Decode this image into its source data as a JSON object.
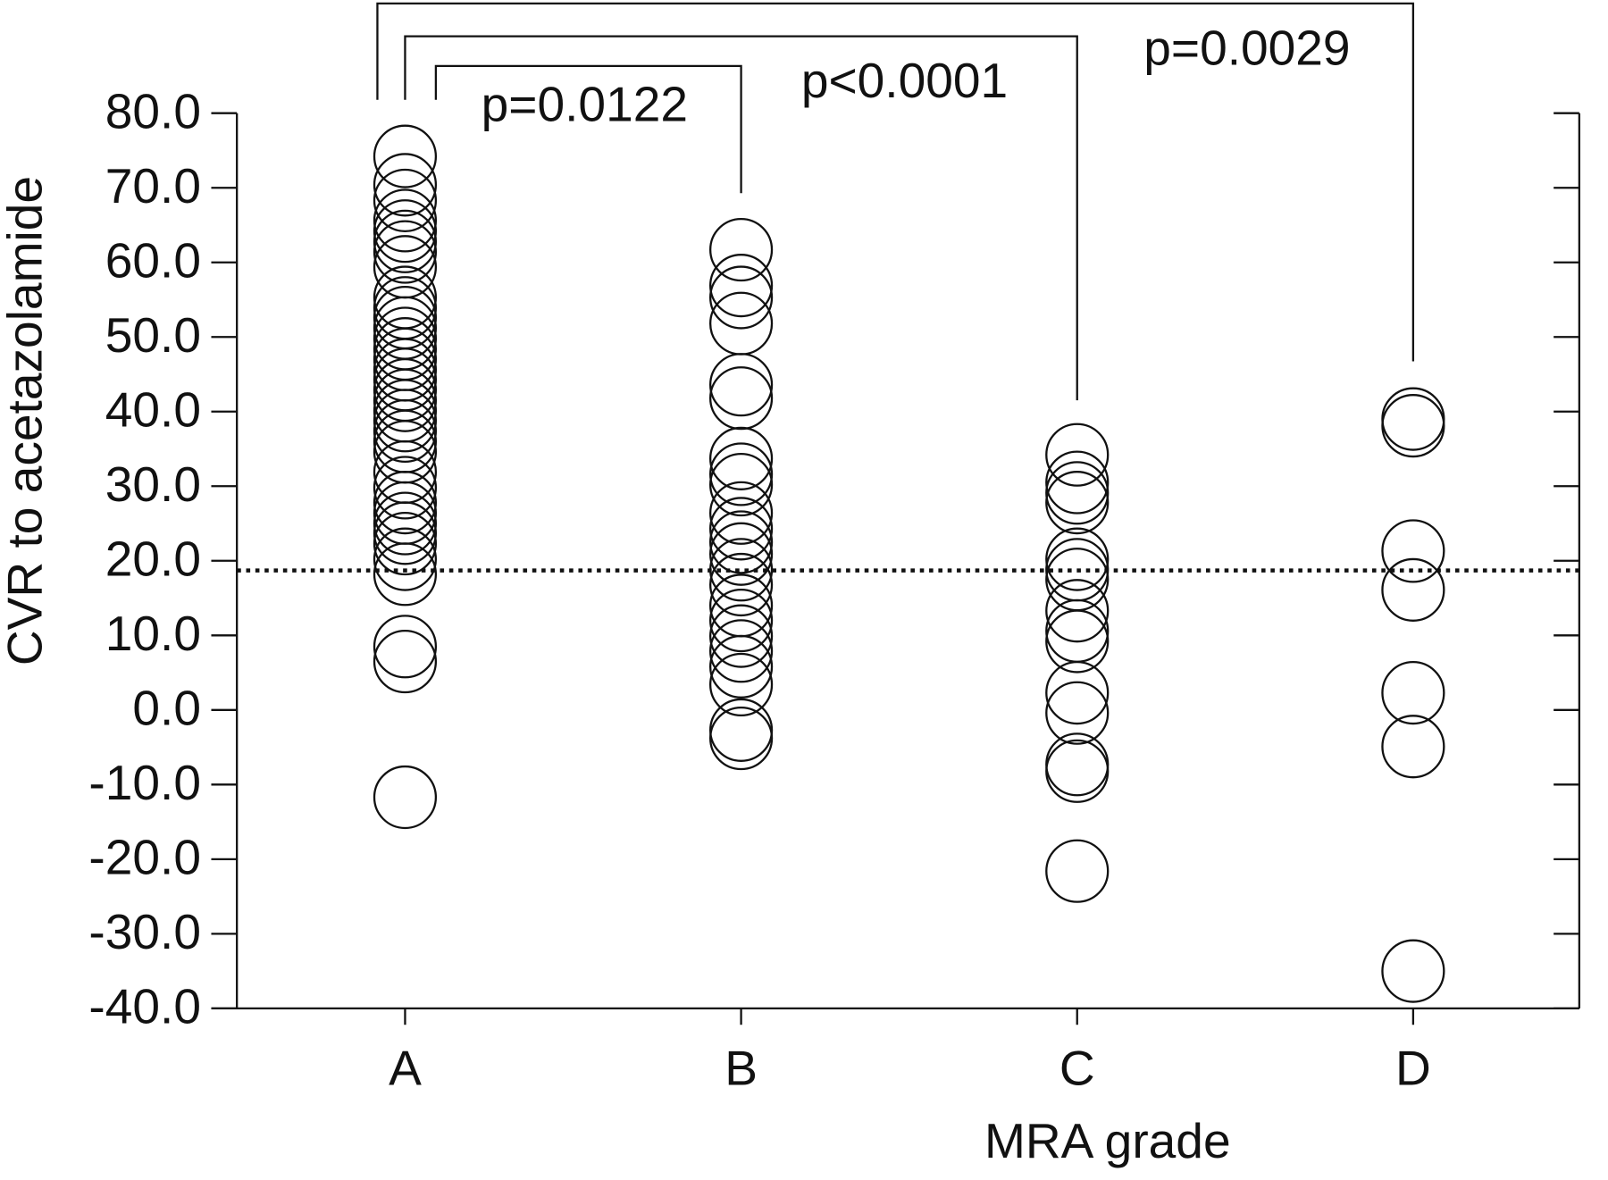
{
  "chart_data": {
    "type": "strip",
    "y_label": "CVR to acetazolamide",
    "x_label": "MRA grade",
    "categories": [
      "A",
      "B",
      "C",
      "D"
    ],
    "values": [
      [
        74.2,
        70.4,
        68.3,
        65.6,
        64.2,
        62.8,
        61.4,
        59.4,
        55.3,
        53.9,
        52.6,
        51.2,
        49.8,
        48.4,
        47.0,
        45.6,
        44.3,
        42.9,
        41.5,
        40.1,
        38.8,
        37.4,
        36.0,
        34.6,
        31.9,
        29.8,
        27.8,
        26.4,
        25.0,
        23.7,
        22.3,
        20.2,
        18.2,
        8.5,
        6.5,
        -11.7
      ],
      [
        61.7,
        56.9,
        55.3,
        51.8,
        43.6,
        41.8,
        33.7,
        31.6,
        30.2,
        26.4,
        24.3,
        22.5,
        20.9,
        18.8,
        16.8,
        14.0,
        12.0,
        9.9,
        7.9,
        5.8,
        3.4,
        -2.7,
        -3.8
      ],
      [
        34.2,
        30.5,
        29.1,
        27.8,
        20.2,
        18.8,
        17.5,
        13.3,
        10.6,
        9.2,
        2.3,
        -0.4,
        -7.3,
        -8.2,
        -21.6
      ],
      [
        39.0,
        38.1,
        21.3,
        16.1,
        2.3,
        -4.9,
        -35.0
      ]
    ],
    "reference_line": 18.7,
    "ylim": [
      -40,
      80
    ],
    "yticks": [
      {
        "value": 80,
        "label": "80.0"
      },
      {
        "value": 70,
        "label": "70.0"
      },
      {
        "value": 60,
        "label": "60.0"
      },
      {
        "value": 50,
        "label": "50.0"
      },
      {
        "value": 40,
        "label": "40.0"
      },
      {
        "value": 30,
        "label": "30.0"
      },
      {
        "value": 20,
        "label": "20.0"
      },
      {
        "value": 10,
        "label": "10.0"
      },
      {
        "value": 0,
        "label": "0.0"
      },
      {
        "value": -10,
        "label": "-10.0"
      },
      {
        "value": -20,
        "label": "-20.0"
      },
      {
        "value": -30,
        "label": "-30.0"
      },
      {
        "value": -40,
        "label": "-40.0"
      }
    ],
    "comparisons": [
      {
        "from": 0,
        "to": 1,
        "label": "p=0.0122"
      },
      {
        "from": 0,
        "to": 2,
        "label": "p<0.0001"
      },
      {
        "from": 0,
        "to": 3,
        "label": "p=0.0029"
      }
    ]
  }
}
